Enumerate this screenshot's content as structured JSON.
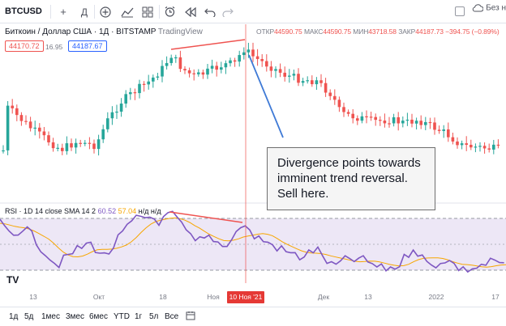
{
  "toolbar": {
    "symbol": "BTCUSD",
    "compare_icon": "plus-circle-icon",
    "interval_label": "Д",
    "right_label": "Без н"
  },
  "legend": {
    "title": "Биткоин / Доллар США · 1Д · BITSTAMP",
    "source": "TradingView",
    "open_key": "ОТКР",
    "open_val": "44590.75",
    "high_key": "МАКС",
    "high_val": "44590.75",
    "low_key": "МИН",
    "low_val": "43718.58",
    "close_key": "ЗАКР",
    "close_val": "44187.73",
    "change": "−394.75 (−0.89%)",
    "bid": "44170.72",
    "spread": "16.95",
    "ask": "44187.67"
  },
  "annotation": "Divergence points towards imminent trend reversal. Sell here.",
  "rsi": {
    "label": "RSI · 1D 14 close SMA 14 2",
    "value": "60.52",
    "sma": "57.04",
    "na": "н/д н/д"
  },
  "time_axis": {
    "ticks": [
      "13",
      "Окт",
      "18",
      "Ноя",
      "Дек",
      "13",
      "2022",
      "17"
    ],
    "cursor_date": "10 Ноя '21"
  },
  "periods": [
    "1д",
    "5д",
    "1мес",
    "3мес",
    "6мес",
    "YTD",
    "1г",
    "5л",
    "Все"
  ],
  "colors": {
    "up": "#26a69a",
    "down": "#ef5350",
    "rsi_line": "#7e57c2",
    "rsi_sma": "#f7a600",
    "rsi_band": "#ede7f6",
    "trendline_red": "#ef5350",
    "arrow_blue": "#3f7ad6"
  },
  "logo": "TV"
}
